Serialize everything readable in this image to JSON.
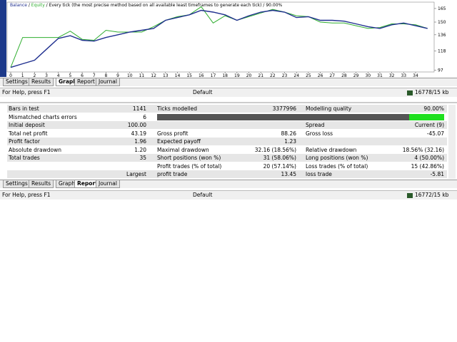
{
  "graph": {
    "legend": [
      "Balance",
      " / ",
      "Equity",
      " / Every tick (the most precise method based on all available least timeframes to generate each tick) / 90.00%"
    ],
    "x": [
      0,
      1,
      2,
      3,
      4,
      5,
      6,
      7,
      8,
      9,
      10,
      11,
      12,
      13,
      14,
      15,
      16,
      17,
      18,
      19,
      20,
      21,
      22,
      23,
      24,
      25,
      26,
      27,
      28,
      29,
      30,
      31,
      32,
      33,
      34,
      35
    ],
    "xlim": [
      0,
      35.5
    ],
    "xticks": [
      0,
      1,
      2,
      3,
      4,
      5,
      6,
      7,
      8,
      9,
      10,
      11,
      12,
      13,
      14,
      15,
      16,
      17,
      18,
      19,
      20,
      21,
      22,
      23,
      24,
      25,
      26,
      27,
      28,
      29,
      30,
      31,
      32,
      33,
      34
    ],
    "ylim": [
      95,
      172
    ],
    "yticks": [
      165,
      150,
      136,
      118,
      97
    ],
    "series": [
      {
        "name": "Balance",
        "color": "#1f2f8f",
        "values": [
          100,
          104,
          108,
          120,
          132,
          135,
          130,
          129,
          133,
          136,
          139,
          141,
          143,
          152,
          155,
          158,
          163,
          161,
          158,
          152,
          157,
          161,
          163,
          161,
          155,
          156,
          152,
          152,
          151,
          148,
          145,
          143,
          147,
          149,
          146,
          143
        ]
      },
      {
        "name": "Equity",
        "color": "#2fae2f",
        "values": [
          100,
          133,
          133,
          133,
          133,
          140,
          131,
          130,
          141,
          139,
          139,
          139,
          145,
          152,
          156,
          158,
          167,
          149,
          157,
          152,
          156,
          160,
          164,
          161,
          157,
          156,
          150,
          149,
          149,
          146,
          143,
          144,
          148,
          148,
          147,
          143
        ]
      }
    ]
  },
  "tabs_top": [
    "Settings",
    "Results",
    "Graph",
    "Report",
    "Journal"
  ],
  "status_top": {
    "help": "For Help, press F1",
    "profile": "Default",
    "memory": "16778/15 kb"
  },
  "report": {
    "rows": [
      [
        "Bars in test",
        "1141",
        "Ticks modelled",
        "3377996",
        "Modelling quality",
        "90.00%"
      ],
      [
        "Mismatched charts errors",
        "6",
        null,
        null,
        null,
        null
      ],
      [
        "Initial deposit",
        "100.00",
        null,
        null,
        "Spread",
        "Current (9)"
      ],
      [
        "Total net profit",
        "43.19",
        "Gross profit",
        "88.26",
        "Gross loss",
        "-45.07"
      ],
      [
        "Profit factor",
        "1.96",
        "Expected payoff",
        "1.23",
        null,
        null
      ],
      [
        "Absolute drawdown",
        "1.20",
        "Maximal drawdown",
        "32.16 (18.56%)",
        "Relative drawdown",
        "18.56% (32.16)"
      ],
      [
        "Total trades",
        "35",
        "Short positions (won %)",
        "31 (58.06%)",
        "Long positions (won %)",
        "4 (50.00%)"
      ],
      [
        null,
        null,
        "Profit trades (% of total)",
        "20 (57.14%)",
        "Loss trades (% of total)",
        "15 (42.86%)"
      ],
      [
        null,
        "Largest",
        "profit trade",
        "13.45",
        "loss trade",
        "-5.81"
      ]
    ]
  },
  "tabs_bottom": [
    "Settings",
    "Results",
    "Graph",
    "Report",
    "Journal"
  ],
  "status_bottom": {
    "help": "For Help, press F1",
    "profile": "Default",
    "memory": "16772/15 kb"
  }
}
